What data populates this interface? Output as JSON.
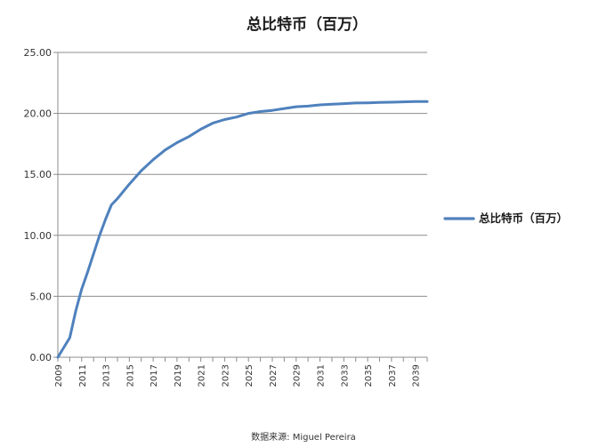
{
  "chart_data": {
    "type": "line",
    "title": "总比特币（百万）",
    "xlabel": "",
    "ylabel": "",
    "ylim": [
      0,
      25
    ],
    "yticks": [
      "0.00",
      "5.00",
      "10.00",
      "15.00",
      "20.00",
      "25.00"
    ],
    "xlim": [
      2009,
      2040
    ],
    "xticks": [
      "2009",
      "2011",
      "2013",
      "2015",
      "2017",
      "2019",
      "2021",
      "2023",
      "2025",
      "2027",
      "2029",
      "2031",
      "2033",
      "2035",
      "2037",
      "2039"
    ],
    "grid": "horizontal",
    "legend_position": "right",
    "series": [
      {
        "name": "总比特币（百万）",
        "color": "#4f81bd",
        "x": [
          2009.0,
          2009.5,
          2010.0,
          2010.5,
          2011.0,
          2011.5,
          2012.0,
          2012.5,
          2013.0,
          2013.5,
          2014.0,
          2015.0,
          2016.0,
          2017.0,
          2018.0,
          2019.0,
          2020.0,
          2021.0,
          2022.0,
          2023.0,
          2024.0,
          2025.0,
          2026.0,
          2027.0,
          2028.0,
          2029.0,
          2030.0,
          2031.0,
          2032.0,
          2033.0,
          2034.0,
          2035.0,
          2036.0,
          2037.0,
          2038.0,
          2039.0,
          2040.0
        ],
        "y": [
          0.0,
          0.8,
          1.6,
          3.8,
          5.6,
          7.0,
          8.5,
          10.0,
          11.3,
          12.5,
          13.0,
          14.2,
          15.3,
          16.2,
          17.0,
          17.6,
          18.1,
          18.7,
          19.2,
          19.5,
          19.7,
          20.0,
          20.15,
          20.25,
          20.4,
          20.55,
          20.6,
          20.7,
          20.75,
          20.8,
          20.85,
          20.87,
          20.9,
          20.92,
          20.95,
          20.97,
          20.98
        ]
      }
    ]
  },
  "source": "数据来源: Miguel Pereira"
}
